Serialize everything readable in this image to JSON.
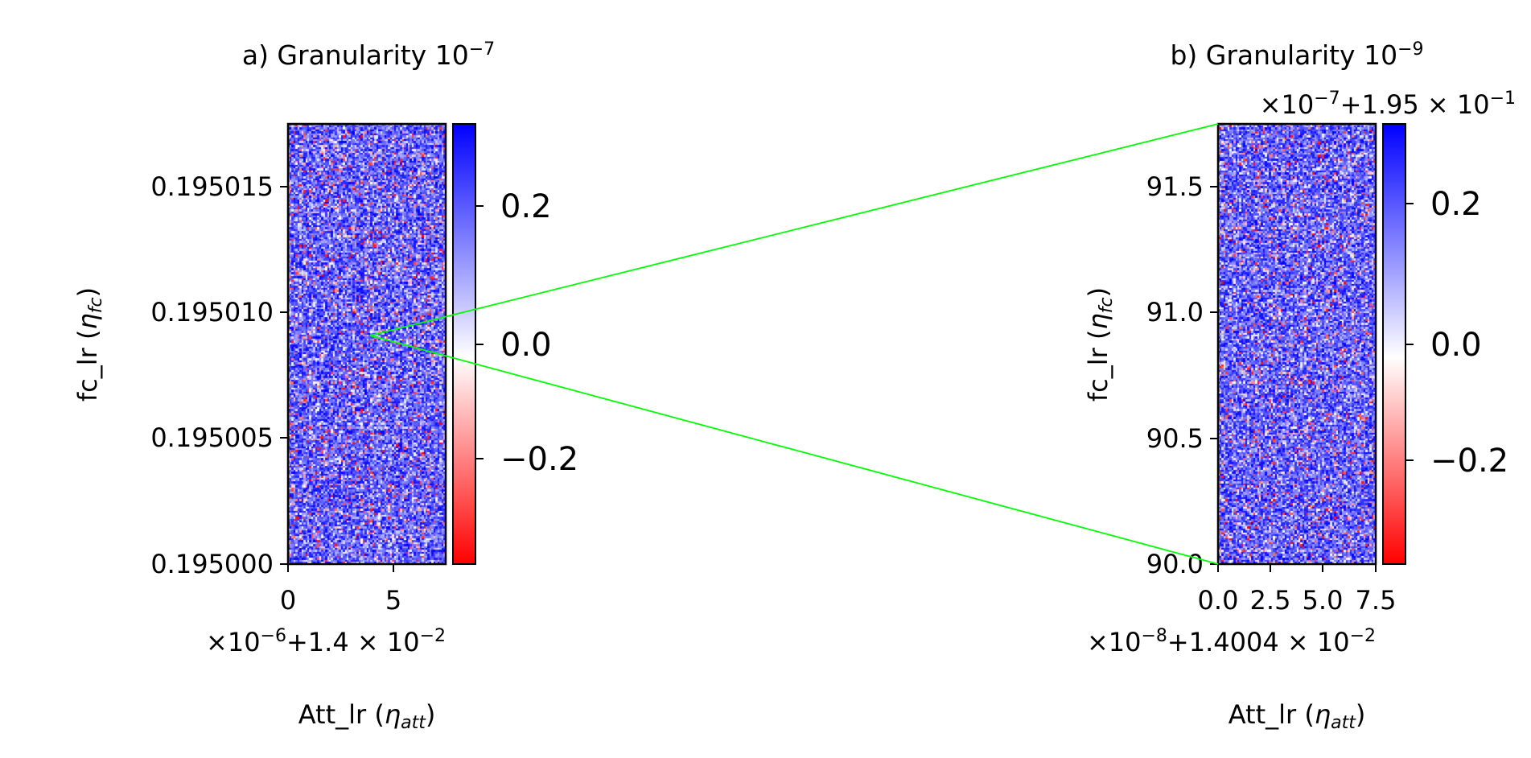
{
  "chart_data": [
    {
      "type": "heatmap",
      "panel": "a",
      "title": {
        "prefix": "a) Granularity 10",
        "exponent": "−7"
      },
      "xlabel": {
        "main": "Att_lr (",
        "symbol": "η",
        "sub": "att",
        "close": ")"
      },
      "ylabel": {
        "main": "fc_lr (",
        "symbol": "η",
        "sub": "fc",
        "close": ")"
      },
      "x_offset_label": {
        "a": "×10",
        "a_exp": "−6",
        "b": "+1.4 × 10",
        "b_exp": "−2"
      },
      "y_offset_label": null,
      "xlim": [
        0,
        7.5
      ],
      "ylim": [
        0.195,
        0.1950175
      ],
      "x_ticks": [
        0,
        5
      ],
      "x_tick_labels": [
        "0",
        "5"
      ],
      "y_ticks": [
        0.195,
        0.195005,
        0.19501,
        0.195015
      ],
      "y_tick_labels": [
        "0.195000",
        "0.195005",
        "0.195010",
        "0.195015"
      ],
      "grid": {
        "cols": 80,
        "rows": 225
      },
      "value_range": [
        -0.36,
        0.32
      ],
      "colormap": "bwr_r",
      "colorbar_ticks": [
        0.2,
        0.0,
        -0.2
      ],
      "colorbar_tick_labels": [
        "0.2",
        "0.0",
        "−0.2"
      ],
      "zoom_point": {
        "x": 4.1,
        "y": 0.1950091
      }
    },
    {
      "type": "heatmap",
      "panel": "b",
      "title": {
        "prefix": "b) Granularity 10",
        "exponent": "−9"
      },
      "xlabel": {
        "main": "Att_lr (",
        "symbol": "η",
        "sub": "att",
        "close": ")"
      },
      "ylabel": {
        "main": "fc_lr (",
        "symbol": "η",
        "sub": "fc",
        "close": ")"
      },
      "x_offset_label": {
        "a": "×10",
        "a_exp": "−8",
        "b": "+1.4004 × 10",
        "b_exp": "−2"
      },
      "y_offset_label": {
        "a": "×10",
        "a_exp": "−7",
        "b": "+1.95 × 10",
        "b_exp": "−1"
      },
      "xlim": [
        0,
        7.5
      ],
      "ylim": [
        90.0,
        91.75
      ],
      "x_ticks": [
        0,
        2.5,
        5,
        7.5
      ],
      "x_tick_labels": [
        "0.0",
        "2.5",
        "5.0",
        "7.5"
      ],
      "y_ticks": [
        90.0,
        90.5,
        91.0,
        91.5
      ],
      "y_tick_labels": [
        "90.0",
        "90.5",
        "91.0",
        "91.5"
      ],
      "grid": {
        "cols": 80,
        "rows": 225
      },
      "value_range": [
        -0.36,
        0.32
      ],
      "colormap": "bwr_r",
      "colorbar_ticks": [
        0.2,
        0.0,
        -0.2
      ],
      "colorbar_tick_labels": [
        "0.2",
        "0.0",
        "−0.2"
      ]
    }
  ],
  "colors": {
    "zoom_lines": "#00ff00",
    "positive": "#0000ff",
    "zero": "#ffffff",
    "negative": "#ff0000"
  }
}
